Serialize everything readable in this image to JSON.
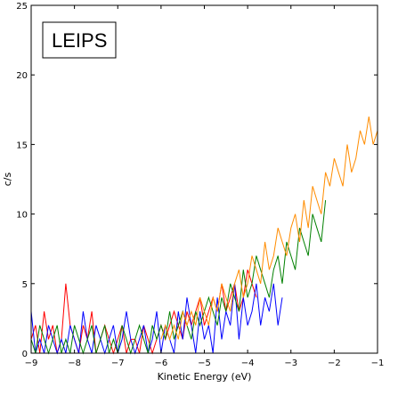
{
  "chart_data": {
    "type": "line",
    "title": "",
    "annotation": "LEIPS",
    "xlabel": "Kinetic Energy (eV)",
    "ylabel": "c/s",
    "xlim": [
      -9,
      -1
    ],
    "ylim": [
      0,
      25
    ],
    "xticks": [
      -9,
      -8,
      -7,
      -6,
      -5,
      -4,
      -3,
      -2,
      -1
    ],
    "yticks": [
      0,
      5,
      10,
      15,
      20,
      25
    ],
    "grid": false,
    "series": [
      {
        "color": "#ff0000",
        "x": [
          -9.0,
          -8.9,
          -8.8,
          -8.7,
          -8.6,
          -8.5,
          -8.4,
          -8.3,
          -8.2,
          -8.1,
          -8.0,
          -7.9,
          -7.8,
          -7.7,
          -7.6,
          -7.5,
          -7.4,
          -7.3,
          -7.2,
          -7.1,
          -7.0,
          -6.9,
          -6.8,
          -6.7,
          -6.6,
          -6.5,
          -6.4,
          -6.3,
          -6.2,
          -6.1,
          -6.0,
          -5.9,
          -5.8,
          -5.7,
          -5.6,
          -5.5,
          -5.4,
          -5.3,
          -5.2,
          -5.1,
          -5.0,
          -4.9,
          -4.8,
          -4.7,
          -4.6,
          -4.5,
          -4.4,
          -4.3,
          -4.2,
          -4.1,
          -4.0,
          -3.9,
          -3.8
        ],
        "y": [
          1,
          2,
          0,
          3,
          1,
          2,
          0,
          1,
          5,
          2,
          1,
          0,
          2,
          1,
          3,
          0,
          1,
          2,
          1,
          0,
          1,
          2,
          0,
          1,
          1,
          0,
          2,
          1,
          0,
          1,
          2,
          1,
          2,
          3,
          2,
          1,
          3,
          2,
          3,
          4,
          2,
          3,
          4,
          3,
          5,
          3,
          4,
          5,
          3,
          4,
          6,
          5,
          4
        ]
      },
      {
        "color": "#0000ff",
        "x": [
          -9.0,
          -8.9,
          -8.8,
          -8.7,
          -8.6,
          -8.5,
          -8.4,
          -8.3,
          -8.2,
          -8.1,
          -8.0,
          -7.9,
          -7.8,
          -7.7,
          -7.6,
          -7.5,
          -7.4,
          -7.3,
          -7.2,
          -7.1,
          -7.0,
          -6.9,
          -6.8,
          -6.7,
          -6.6,
          -6.5,
          -6.4,
          -6.3,
          -6.2,
          -6.1,
          -6.0,
          -5.9,
          -5.8,
          -5.7,
          -5.6,
          -5.5,
          -5.4,
          -5.3,
          -5.2,
          -5.1,
          -5.0,
          -4.9,
          -4.8,
          -4.7,
          -4.6,
          -4.5,
          -4.4,
          -4.3,
          -4.2,
          -4.1,
          -4.0,
          -3.9,
          -3.8,
          -3.7,
          -3.6,
          -3.5,
          -3.4,
          -3.3,
          -3.2
        ],
        "y": [
          3,
          0,
          1,
          0,
          2,
          1,
          0,
          1,
          0,
          2,
          1,
          0,
          3,
          1,
          0,
          2,
          1,
          0,
          1,
          2,
          0,
          1,
          3,
          1,
          0,
          1,
          2,
          0,
          1,
          3,
          0,
          2,
          1,
          0,
          3,
          1,
          4,
          2,
          0,
          3,
          1,
          2,
          0,
          4,
          1,
          3,
          2,
          5,
          1,
          4,
          2,
          3,
          5,
          2,
          4,
          3,
          5,
          2,
          4
        ]
      },
      {
        "color": "#008000",
        "x": [
          -9.0,
          -8.9,
          -8.8,
          -8.7,
          -8.6,
          -8.5,
          -8.4,
          -8.3,
          -8.2,
          -8.1,
          -8.0,
          -7.9,
          -7.8,
          -7.7,
          -7.6,
          -7.5,
          -7.4,
          -7.3,
          -7.2,
          -7.1,
          -7.0,
          -6.9,
          -6.8,
          -6.7,
          -6.6,
          -6.5,
          -6.4,
          -6.3,
          -6.2,
          -6.1,
          -6.0,
          -5.9,
          -5.8,
          -5.7,
          -5.6,
          -5.5,
          -5.4,
          -5.3,
          -5.2,
          -5.1,
          -5.0,
          -4.9,
          -4.8,
          -4.7,
          -4.6,
          -4.5,
          -4.4,
          -4.3,
          -4.2,
          -4.1,
          -4.0,
          -3.9,
          -3.8,
          -3.7,
          -3.6,
          -3.5,
          -3.4,
          -3.3,
          -3.2,
          -3.1,
          -3.0,
          -2.9,
          -2.8,
          -2.7,
          -2.6,
          -2.5,
          -2.4,
          -2.3,
          -2.2
        ],
        "y": [
          1,
          0,
          2,
          1,
          0,
          1,
          2,
          0,
          1,
          0,
          2,
          1,
          0,
          1,
          2,
          0,
          1,
          2,
          0,
          1,
          0,
          2,
          1,
          0,
          1,
          2,
          1,
          0,
          2,
          1,
          2,
          1,
          3,
          1,
          2,
          3,
          2,
          1,
          3,
          2,
          3,
          4,
          3,
          2,
          4,
          3,
          5,
          4,
          3,
          6,
          4,
          5,
          7,
          6,
          5,
          4,
          6,
          7,
          5,
          8,
          7,
          6,
          9,
          8,
          7,
          10,
          9,
          8,
          11
        ]
      },
      {
        "color": "#ff8c00",
        "x": [
          -6.0,
          -5.9,
          -5.8,
          -5.7,
          -5.6,
          -5.5,
          -5.4,
          -5.3,
          -5.2,
          -5.1,
          -5.0,
          -4.9,
          -4.8,
          -4.7,
          -4.6,
          -4.5,
          -4.4,
          -4.3,
          -4.2,
          -4.1,
          -4.0,
          -3.9,
          -3.8,
          -3.7,
          -3.6,
          -3.5,
          -3.4,
          -3.3,
          -3.2,
          -3.1,
          -3.0,
          -2.9,
          -2.8,
          -2.7,
          -2.6,
          -2.5,
          -2.4,
          -2.3,
          -2.2,
          -2.1,
          -2.0,
          -1.9,
          -1.8,
          -1.7,
          -1.6,
          -1.5,
          -1.4,
          -1.3,
          -1.2,
          -1.1,
          -1.0
        ],
        "y": [
          1,
          2,
          1,
          2,
          1,
          3,
          2,
          3,
          2,
          4,
          3,
          2,
          4,
          3,
          5,
          4,
          3,
          5,
          6,
          4,
          5,
          7,
          6,
          5,
          8,
          6,
          7,
          9,
          8,
          7,
          9,
          10,
          8,
          11,
          9,
          12,
          11,
          10,
          13,
          12,
          14,
          13,
          12,
          15,
          13,
          14,
          16,
          15,
          17,
          15,
          16
        ]
      }
    ]
  }
}
